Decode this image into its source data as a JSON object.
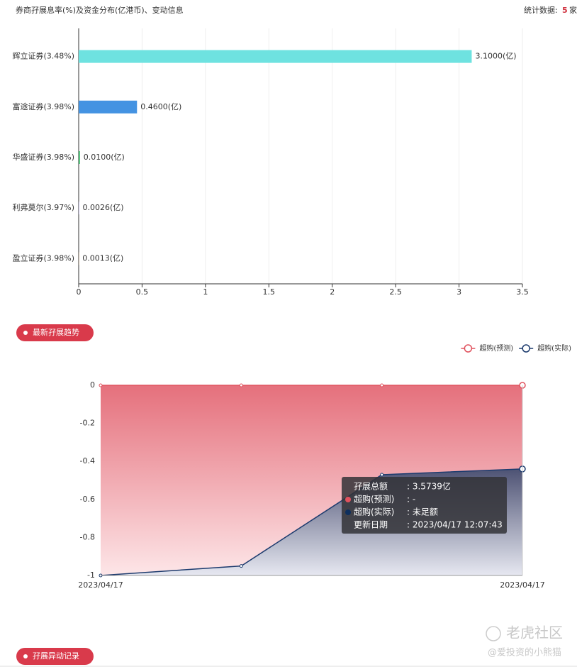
{
  "header": {
    "title": "券商孖展息率(%)及资金分布(亿港币)、变动信息",
    "stat_label": "统计数据:",
    "stat_value": "5",
    "stat_unit": "家"
  },
  "sections": [
    "最新孖展趋势",
    "孖展异动记录"
  ],
  "tooltip": {
    "rows": [
      [
        "孖展总额",
        ": 3.5739亿"
      ],
      [
        "超购(预测)",
        ": -"
      ],
      [
        "超购(实际)",
        ": 未足额"
      ],
      [
        "更新日期",
        ": 2023/04/17 12:07:43"
      ]
    ]
  },
  "watermark": {
    "brand": "老虎社区",
    "author": "@爱投资的小熊猫"
  },
  "chart_data": [
    {
      "type": "bar",
      "orientation": "horizontal",
      "categories": [
        "辉立证券(3.48%)",
        "富途证券(3.98%)",
        "华盛证券(3.98%)",
        "利弗莫尔(3.97%)",
        "盈立证券(3.98%)"
      ],
      "values": [
        3.1,
        0.46,
        0.01,
        0.0026,
        0.0013
      ],
      "value_labels": [
        "3.1000(亿)",
        "0.4600(亿)",
        "0.0100(亿)",
        "0.0026(亿)",
        "0.0013(亿)"
      ],
      "colors": [
        "#6ee2e0",
        "#4493e2",
        "#3dbb6a",
        "#8a7fd6",
        "#f2a65a"
      ],
      "xlim": [
        0,
        3.5
      ],
      "xticks": [
        0,
        0.5,
        1,
        1.5,
        2,
        2.5,
        3,
        3.5
      ],
      "grid": true
    },
    {
      "type": "area",
      "categories": [
        "2023/04/17",
        null,
        null,
        "2023/04/17"
      ],
      "series": [
        {
          "name": "超购(预测)",
          "color": "#e0525e",
          "values": [
            0,
            0,
            0,
            0
          ]
        },
        {
          "name": "超购(实际)",
          "color": "#1d3b6e",
          "values": [
            -1,
            -0.95,
            -0.47,
            -0.44
          ]
        }
      ],
      "ylim": [
        -1,
        0
      ],
      "yticks": [
        0,
        -0.2,
        -0.4,
        -0.6,
        -0.8,
        -1
      ],
      "grid": true,
      "legend": "top-right"
    }
  ]
}
